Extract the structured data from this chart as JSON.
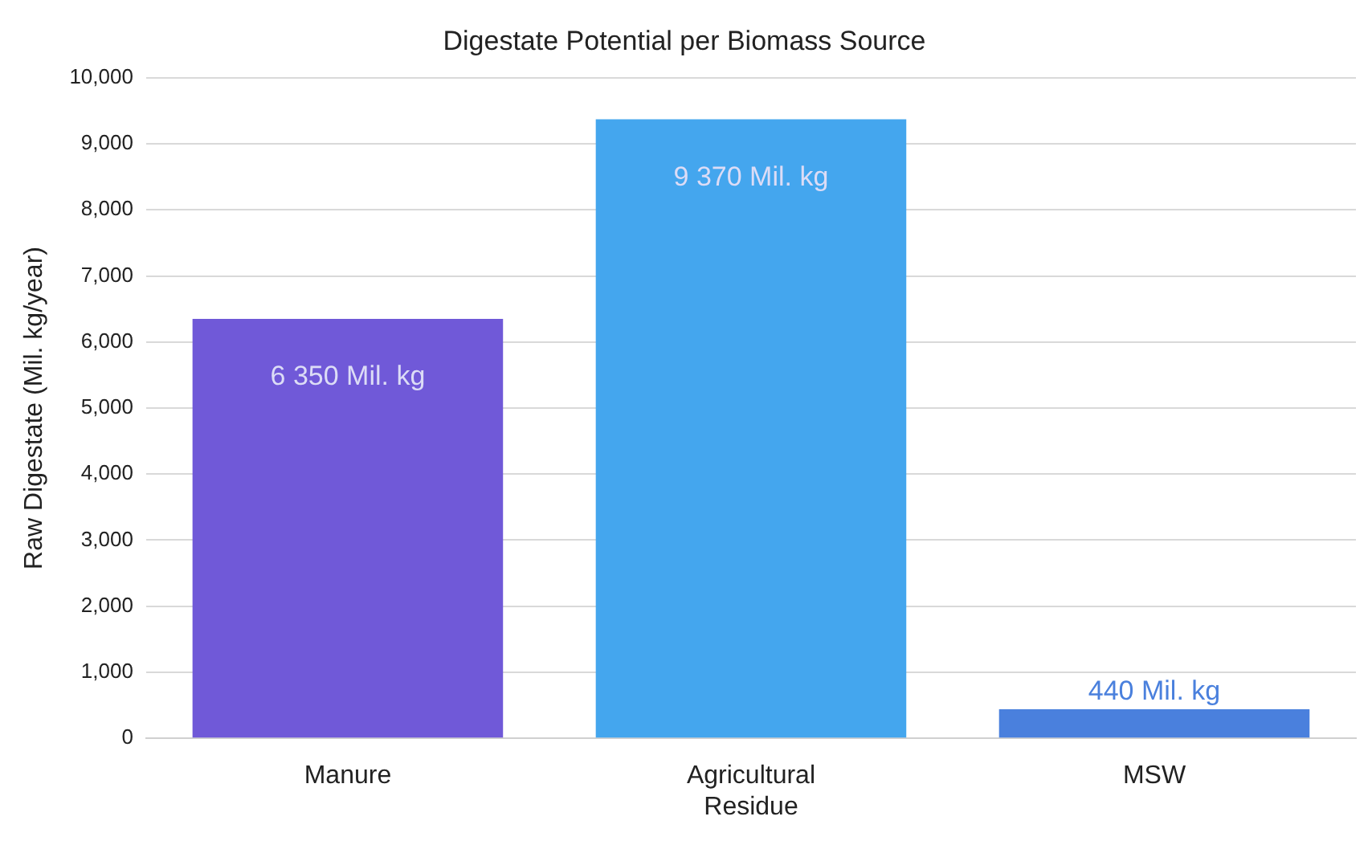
{
  "chart_data": {
    "type": "bar",
    "title": "Digestate Potential per Biomass Source",
    "ylabel": "Raw Digestate (Mil. kg/year)",
    "categories": [
      "Manure",
      "Agricultural Residue",
      "MSW"
    ],
    "values": [
      6350,
      9370,
      440
    ],
    "colors": [
      "#7059d8",
      "#44a6ee",
      "#4a80dd"
    ],
    "value_labels": [
      "6 350 Mil. kg",
      "9 370 Mil. kg",
      "440 Mil. kg"
    ],
    "ylim": [
      0,
      10000
    ],
    "yticks": [
      {
        "value": 0,
        "label": "0"
      },
      {
        "value": 1000,
        "label": "1,000"
      },
      {
        "value": 2000,
        "label": "2,000"
      },
      {
        "value": 3000,
        "label": "3,000"
      },
      {
        "value": 4000,
        "label": "4,000"
      },
      {
        "value": 5000,
        "label": "5,000"
      },
      {
        "value": 6000,
        "label": "6,000"
      },
      {
        "value": 7000,
        "label": "7,000"
      },
      {
        "value": 8000,
        "label": "8,000"
      },
      {
        "value": 9000,
        "label": "9,000"
      },
      {
        "value": 10000,
        "label": "10,000"
      }
    ],
    "grid": "y",
    "legend": false
  }
}
